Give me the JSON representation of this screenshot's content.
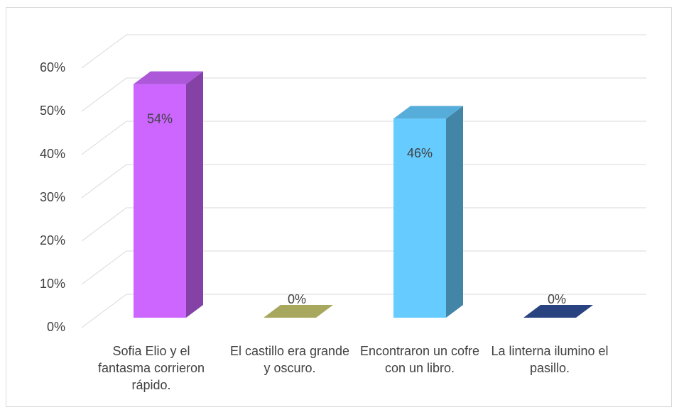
{
  "chart_data": {
    "type": "bar3d",
    "categories": [
      "Sofia Elio y el fantasma corrieron rápido.",
      "El castillo era grande y oscuro.",
      "Encontraron un cofre con un libro.",
      "La linterna ilumino el pasillo."
    ],
    "values": [
      54,
      0,
      46,
      0
    ],
    "value_labels": [
      "54%",
      "0%",
      "46%",
      "0%"
    ],
    "colors": [
      "#cc66ff",
      "#c4c46e",
      "#66ccff",
      "#2f4f96"
    ],
    "ylim": [
      0,
      60
    ],
    "yticks": [
      {
        "value": 0,
        "label": "0%"
      },
      {
        "value": 10,
        "label": "10%"
      },
      {
        "value": 20,
        "label": "20%"
      },
      {
        "value": 30,
        "label": "30%"
      },
      {
        "value": 40,
        "label": "40%"
      },
      {
        "value": 50,
        "label": "50%"
      },
      {
        "value": 60,
        "label": "60%"
      }
    ],
    "grid": true
  }
}
